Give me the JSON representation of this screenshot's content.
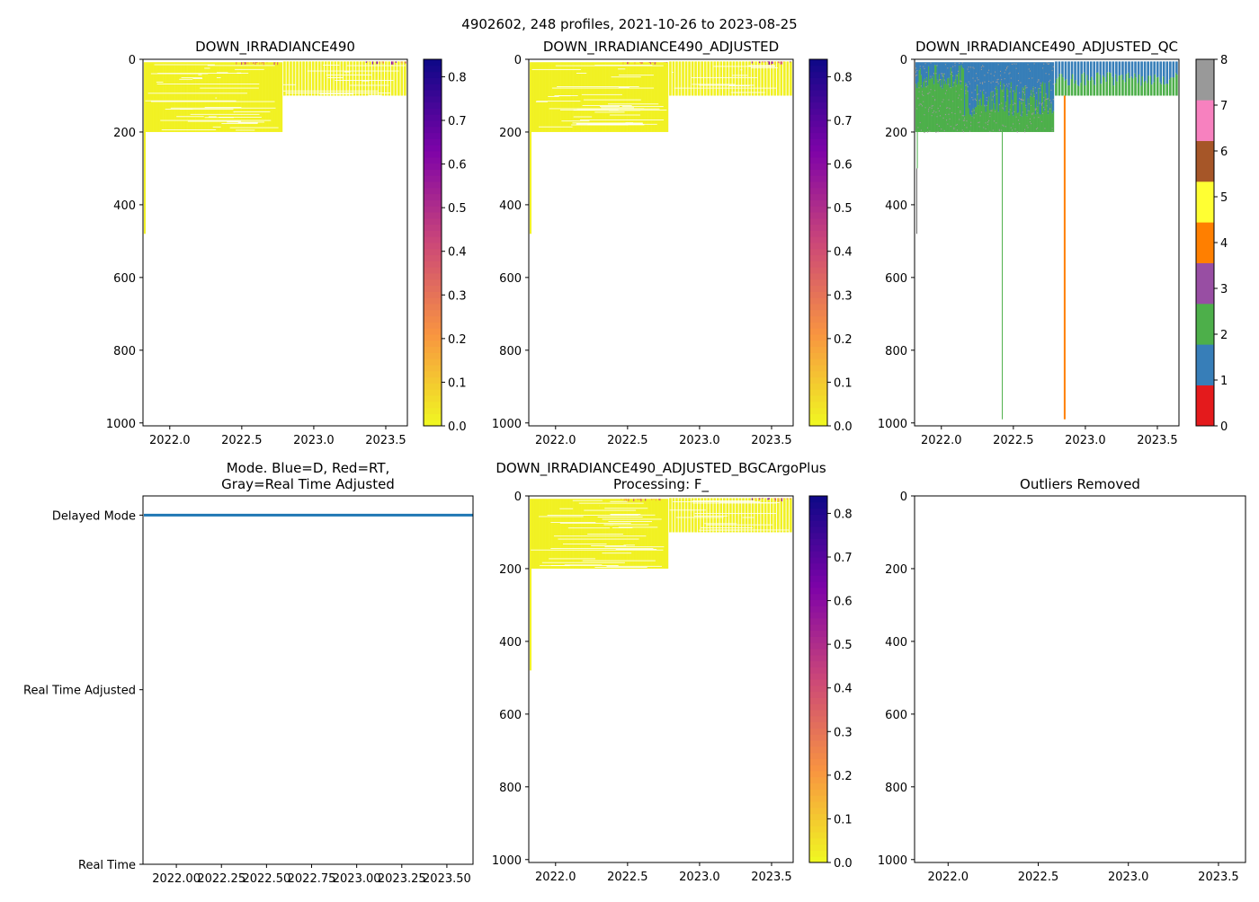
{
  "figure_title": "4902602, 248 profiles, 2021-10-26 to 2023-08-25",
  "colors": {
    "cmap_plasma_r": [
      "#f0f921",
      "#f89540",
      "#cc4778",
      "#7e03a8",
      "#0d0887"
    ],
    "qc": [
      "#e41a1c",
      "#377eb8",
      "#4daf4a",
      "#984ea3",
      "#ff7f00",
      "#ffff33",
      "#a65628",
      "#f781bf",
      "#999999"
    ],
    "mode_line": "#1f77b4"
  },
  "chart_data": [
    {
      "type": "heatmap",
      "title": "DOWN_IRRADIANCE490",
      "n_profiles": 248,
      "xlim": [
        2021.814,
        2023.65
      ],
      "ylim": [
        1008,
        0
      ],
      "xticks": [
        "2022.0",
        "2022.5",
        "2023.0",
        "2023.5"
      ],
      "xtick_values": [
        2022.0,
        2022.5,
        2023.0,
        2023.5
      ],
      "yticks": [
        "0",
        "200",
        "400",
        "600",
        "800",
        "1000"
      ],
      "ytick_values": [
        0,
        200,
        400,
        600,
        800,
        1000
      ],
      "segments": [
        {
          "x_range": [
            2021.82,
            2022.78
          ],
          "max_depth": 200
        },
        {
          "x_range": [
            2022.78,
            2023.64
          ],
          "max_depth": 100
        }
      ],
      "first_profile_max_depth": 480,
      "high_value_windows": [
        [
          2022.45,
          2022.78
        ],
        [
          2023.35,
          2023.64
        ]
      ],
      "value_range": [
        0,
        0.84
      ],
      "colorbar": {
        "ticks": [
          "0.0",
          "0.1",
          "0.2",
          "0.3",
          "0.4",
          "0.5",
          "0.6",
          "0.7",
          "0.8"
        ],
        "tick_values": [
          0,
          0.1,
          0.2,
          0.3,
          0.4,
          0.5,
          0.6,
          0.7,
          0.8
        ],
        "range": [
          0,
          0.84
        ]
      }
    },
    {
      "type": "heatmap",
      "title": "DOWN_IRRADIANCE490_ADJUSTED",
      "n_profiles": 248,
      "xlim": [
        2021.814,
        2023.65
      ],
      "ylim": [
        1008,
        0
      ],
      "xticks": [
        "2022.0",
        "2022.5",
        "2023.0",
        "2023.5"
      ],
      "xtick_values": [
        2022.0,
        2022.5,
        2023.0,
        2023.5
      ],
      "yticks": [
        "0",
        "200",
        "400",
        "600",
        "800",
        "1000"
      ],
      "ytick_values": [
        0,
        200,
        400,
        600,
        800,
        1000
      ],
      "segments": [
        {
          "x_range": [
            2021.82,
            2022.78
          ],
          "max_depth": 200
        },
        {
          "x_range": [
            2022.78,
            2023.64
          ],
          "max_depth": 100
        }
      ],
      "first_profile_max_depth": 480,
      "high_value_windows": [
        [
          2022.45,
          2022.78
        ],
        [
          2023.35,
          2023.64
        ]
      ],
      "value_range": [
        0,
        0.84
      ],
      "colorbar": {
        "ticks": [
          "0.0",
          "0.1",
          "0.2",
          "0.3",
          "0.4",
          "0.5",
          "0.6",
          "0.7",
          "0.8"
        ],
        "tick_values": [
          0,
          0.1,
          0.2,
          0.3,
          0.4,
          0.5,
          0.6,
          0.7,
          0.8
        ],
        "range": [
          0,
          0.84
        ]
      }
    },
    {
      "type": "heatmap",
      "title": "DOWN_IRRADIANCE490_ADJUSTED_QC",
      "n_profiles": 248,
      "xlim": [
        2021.814,
        2023.65
      ],
      "ylim": [
        1008,
        0
      ],
      "xticks": [
        "2022.0",
        "2022.5",
        "2023.0",
        "2023.5"
      ],
      "xtick_values": [
        2022.0,
        2022.5,
        2023.0,
        2023.5
      ],
      "yticks": [
        "0",
        "200",
        "400",
        "600",
        "800",
        "1000"
      ],
      "ytick_values": [
        0,
        200,
        400,
        600,
        800,
        1000
      ],
      "segments": [
        {
          "x_range": [
            2021.82,
            2022.78
          ],
          "max_depth": 200
        },
        {
          "x_range": [
            2022.78,
            2023.64
          ],
          "max_depth": 100
        }
      ],
      "qc_layers": "QC 1 near surface, QC 2 below, scattered QC 8",
      "special_profiles": [
        {
          "x": 2021.83,
          "qc": 2,
          "max_depth": 300
        },
        {
          "x": 2022.42,
          "qc": 2,
          "max_depth": 990
        },
        {
          "x": 2022.85,
          "qc": 4,
          "max_depth": 990
        }
      ],
      "colorbar": {
        "ticks": [
          "0",
          "1",
          "2",
          "3",
          "4",
          "5",
          "6",
          "7",
          "8"
        ],
        "tick_values": [
          0,
          1,
          2,
          3,
          4,
          5,
          6,
          7,
          8
        ],
        "range": [
          0,
          8
        ]
      }
    },
    {
      "type": "line",
      "title": "Mode. Blue=D, Red=RT,",
      "title_line2": "Gray=Real Time Adjusted",
      "xlim": [
        2021.815,
        2023.645
      ],
      "ylim": [
        0,
        2.11
      ],
      "xticks": [
        "2022.00",
        "2022.25",
        "2022.50",
        "2022.75",
        "2023.00",
        "2023.25",
        "2023.50"
      ],
      "xtick_values": [
        2022.0,
        2022.25,
        2022.5,
        2022.75,
        2023.0,
        2023.25,
        2023.5
      ],
      "yticks": [
        "Real Time",
        "Real Time Adjusted",
        "Delayed Mode"
      ],
      "ytick_values": [
        0,
        1,
        2
      ],
      "series": [
        {
          "name": "Delayed Mode",
          "x": [
            2021.82,
            2023.65
          ],
          "y": [
            2,
            2
          ]
        }
      ]
    },
    {
      "type": "heatmap",
      "title": "DOWN_IRRADIANCE490_ADJUSTED_BGCArgoPlus",
      "title_line2": "Processing: F_",
      "n_profiles": 248,
      "xlim": [
        2021.814,
        2023.65
      ],
      "ylim": [
        1008,
        0
      ],
      "xticks": [
        "2022.0",
        "2022.5",
        "2023.0",
        "2023.5"
      ],
      "xtick_values": [
        2022.0,
        2022.5,
        2023.0,
        2023.5
      ],
      "yticks": [
        "0",
        "200",
        "400",
        "600",
        "800",
        "1000"
      ],
      "ytick_values": [
        0,
        200,
        400,
        600,
        800,
        1000
      ],
      "segments": [
        {
          "x_range": [
            2021.82,
            2022.78
          ],
          "max_depth": 200
        },
        {
          "x_range": [
            2022.78,
            2023.64
          ],
          "max_depth": 100
        }
      ],
      "first_profile_max_depth": 480,
      "high_value_windows": [
        [
          2022.45,
          2022.78
        ],
        [
          2023.35,
          2023.64
        ]
      ],
      "value_range": [
        0,
        0.84
      ],
      "colorbar": {
        "ticks": [
          "0.0",
          "0.1",
          "0.2",
          "0.3",
          "0.4",
          "0.5",
          "0.6",
          "0.7",
          "0.8"
        ],
        "tick_values": [
          0,
          0.1,
          0.2,
          0.3,
          0.4,
          0.5,
          0.6,
          0.7,
          0.8
        ],
        "range": [
          0,
          0.84
        ]
      }
    },
    {
      "type": "scatter",
      "title": "Outliers Removed",
      "xlim": [
        2021.814,
        2023.65
      ],
      "ylim": [
        1008,
        0
      ],
      "xticks": [
        "2022.0",
        "2022.5",
        "2023.0",
        "2023.5"
      ],
      "xtick_values": [
        2022.0,
        2022.5,
        2023.0,
        2023.5
      ],
      "yticks": [
        "0",
        "200",
        "400",
        "600",
        "800",
        "1000"
      ],
      "ytick_values": [
        0,
        200,
        400,
        600,
        800,
        1000
      ],
      "points": []
    }
  ]
}
